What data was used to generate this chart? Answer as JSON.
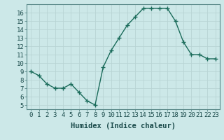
{
  "x": [
    0,
    1,
    2,
    3,
    4,
    5,
    6,
    7,
    8,
    9,
    10,
    11,
    12,
    13,
    14,
    15,
    16,
    17,
    18,
    19,
    20,
    21,
    22,
    23
  ],
  "y": [
    9,
    8.5,
    7.5,
    7,
    7,
    7.5,
    6.5,
    5.5,
    5,
    9.5,
    11.5,
    13,
    14.5,
    15.5,
    16.5,
    16.5,
    16.5,
    16.5,
    15,
    12.5,
    11,
    11,
    10.5,
    10.5
  ],
  "line_color": "#1a6b5a",
  "marker": "+",
  "marker_size": 4,
  "bg_color": "#cce8e8",
  "grid_color": "#b8d4d4",
  "xlabel": "Humidex (Indice chaleur)",
  "xlim": [
    -0.5,
    23.5
  ],
  "ylim": [
    4.5,
    17
  ],
  "xticks": [
    0,
    1,
    2,
    3,
    4,
    5,
    6,
    7,
    8,
    9,
    10,
    11,
    12,
    13,
    14,
    15,
    16,
    17,
    18,
    19,
    20,
    21,
    22,
    23
  ],
  "yticks": [
    5,
    6,
    7,
    8,
    9,
    10,
    11,
    12,
    13,
    14,
    15,
    16
  ],
  "tick_fontsize": 6.5,
  "label_fontsize": 7.5
}
